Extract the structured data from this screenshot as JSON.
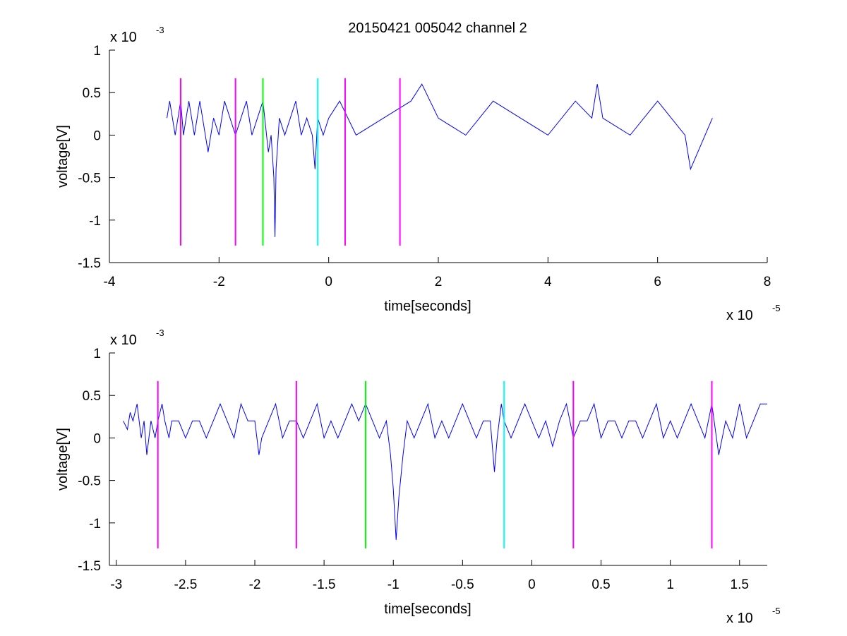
{
  "title": "20150421 005042 channel 2",
  "chart_data": [
    {
      "type": "line",
      "xlabel": "time[seconds]",
      "ylabel": "voltage[V]",
      "x_multiplier": {
        "base": "x 10",
        "exp": "-5"
      },
      "y_multiplier": {
        "base": "x 10",
        "exp": "-3"
      },
      "xlim": [
        -4,
        8
      ],
      "ylim": [
        -1.5,
        1
      ],
      "xticks": [
        "-4",
        "-2",
        "0",
        "2",
        "4",
        "6",
        "8"
      ],
      "xtick_values": [
        -4,
        -2,
        0,
        2,
        4,
        6,
        8
      ],
      "yticks": [
        "-1.5",
        "-1",
        "-0.5",
        "0",
        "0.5",
        "1"
      ],
      "ytick_values": [
        -1.5,
        -1,
        -0.5,
        0,
        0.5,
        1
      ],
      "series": [
        {
          "color": "#0000ff",
          "x": [
            -2.95,
            -2.9,
            -2.85,
            -2.8,
            -2.75,
            -2.7,
            -2.65,
            -2.6,
            -2.55,
            -2.5,
            -2.45,
            -2.4,
            -2.35,
            -2.3,
            -2.25,
            -2.2,
            -2.1,
            -2.0,
            -1.9,
            -1.8,
            -1.7,
            -1.6,
            -1.5,
            -1.4,
            -1.3,
            -1.2,
            -1.1,
            -1.05,
            -1.0,
            -0.98,
            -0.96,
            -0.9,
            -0.8,
            -0.7,
            -0.6,
            -0.5,
            -0.4,
            -0.3,
            -0.25,
            -0.2,
            -0.1,
            0.0,
            0.2,
            0.5,
            1.0,
            1.5,
            1.7,
            2.0,
            2.5,
            3.0,
            3.5,
            4.0,
            4.5,
            4.8,
            4.9,
            5.0,
            5.5,
            6.0,
            6.5,
            6.6,
            7.0
          ],
          "y": [
            0.2,
            0.4,
            0.2,
            0.0,
            0.2,
            0.4,
            0.0,
            0.2,
            0.4,
            0.2,
            0.0,
            0.2,
            0.4,
            0.2,
            0.0,
            -0.2,
            0.2,
            0.0,
            0.4,
            0.2,
            0.0,
            0.2,
            0.4,
            0.0,
            0.2,
            0.4,
            -0.2,
            0.0,
            -0.5,
            -1.2,
            -0.4,
            0.2,
            0.0,
            0.2,
            0.4,
            0.0,
            0.2,
            0.0,
            -0.4,
            0.2,
            0.0,
            0.2,
            0.4,
            0.0,
            0.2,
            0.4,
            0.6,
            0.2,
            0.0,
            0.4,
            0.2,
            0.0,
            0.4,
            0.2,
            0.6,
            0.2,
            0.0,
            0.4,
            0.0,
            -0.4,
            0.2
          ]
        }
      ],
      "vlines": [
        {
          "x": -2.7,
          "color": "#ff00ff",
          "y_from": -1.3,
          "y_to": 0.67
        },
        {
          "x": -1.7,
          "color": "#ff00ff",
          "y_from": -1.3,
          "y_to": 0.67
        },
        {
          "x": -1.2,
          "color": "#00ff00",
          "y_from": -1.3,
          "y_to": 0.67
        },
        {
          "x": -0.2,
          "color": "#00ffff",
          "y_from": -1.3,
          "y_to": 0.67
        },
        {
          "x": 0.3,
          "color": "#ff00ff",
          "y_from": -1.3,
          "y_to": 0.67
        },
        {
          "x": 1.3,
          "color": "#ff00ff",
          "y_from": -1.3,
          "y_to": 0.67
        }
      ]
    },
    {
      "type": "line",
      "xlabel": "time[seconds]",
      "ylabel": "voltage[V]",
      "x_multiplier": {
        "base": "x 10",
        "exp": "-5"
      },
      "y_multiplier": {
        "base": "x 10",
        "exp": "-3"
      },
      "xlim": [
        -3.05,
        1.7
      ],
      "ylim": [
        -1.5,
        1
      ],
      "xticks": [
        "-3",
        "-2.5",
        "-2",
        "-1.5",
        "-1",
        "-0.5",
        "0",
        "0.5",
        "1",
        "1.5"
      ],
      "xtick_values": [
        -3,
        -2.5,
        -2,
        -1.5,
        -1,
        -0.5,
        0,
        0.5,
        1,
        1.5
      ],
      "yticks": [
        "-1.5",
        "-1",
        "-0.5",
        "0",
        "0.5",
        "1"
      ],
      "ytick_values": [
        -1.5,
        -1,
        -0.5,
        0,
        0.5,
        1
      ],
      "series": [
        {
          "color": "#0000ff",
          "x": [
            -2.95,
            -2.92,
            -2.9,
            -2.88,
            -2.85,
            -2.82,
            -2.8,
            -2.78,
            -2.75,
            -2.72,
            -2.7,
            -2.67,
            -2.65,
            -2.62,
            -2.6,
            -2.55,
            -2.5,
            -2.45,
            -2.4,
            -2.35,
            -2.3,
            -2.25,
            -2.2,
            -2.15,
            -2.1,
            -2.05,
            -2.0,
            -1.97,
            -1.95,
            -1.9,
            -1.85,
            -1.8,
            -1.75,
            -1.7,
            -1.65,
            -1.6,
            -1.55,
            -1.5,
            -1.45,
            -1.4,
            -1.35,
            -1.3,
            -1.25,
            -1.2,
            -1.15,
            -1.1,
            -1.05,
            -1.02,
            -1.0,
            -0.98,
            -0.96,
            -0.93,
            -0.9,
            -0.85,
            -0.8,
            -0.75,
            -0.7,
            -0.65,
            -0.6,
            -0.55,
            -0.5,
            -0.45,
            -0.4,
            -0.35,
            -0.3,
            -0.27,
            -0.25,
            -0.22,
            -0.2,
            -0.15,
            -0.1,
            -0.05,
            0.0,
            0.05,
            0.1,
            0.15,
            0.2,
            0.25,
            0.3,
            0.35,
            0.4,
            0.45,
            0.5,
            0.55,
            0.6,
            0.65,
            0.7,
            0.75,
            0.8,
            0.85,
            0.9,
            0.95,
            1.0,
            1.05,
            1.1,
            1.15,
            1.2,
            1.25,
            1.3,
            1.35,
            1.4,
            1.45,
            1.5,
            1.55,
            1.6,
            1.65,
            1.7
          ],
          "y": [
            0.2,
            0.1,
            0.3,
            0.2,
            0.4,
            0.0,
            0.2,
            -0.2,
            0.2,
            0.0,
            0.2,
            0.4,
            0.2,
            0.0,
            0.2,
            0.2,
            0.0,
            0.2,
            0.2,
            0.0,
            0.2,
            0.4,
            0.2,
            0.0,
            0.4,
            0.2,
            0.2,
            -0.2,
            0.0,
            0.2,
            0.4,
            0.0,
            0.2,
            0.2,
            0.0,
            0.2,
            0.4,
            0.0,
            0.2,
            0.0,
            0.2,
            0.4,
            0.2,
            0.4,
            0.2,
            0.0,
            0.2,
            -0.2,
            -0.6,
            -1.2,
            -0.7,
            -0.2,
            0.2,
            0.0,
            0.2,
            0.4,
            0.0,
            0.2,
            0.0,
            0.2,
            0.4,
            0.2,
            0.0,
            0.2,
            0.2,
            -0.4,
            0.0,
            0.4,
            0.2,
            0.0,
            0.2,
            0.4,
            0.2,
            0.0,
            0.2,
            -0.1,
            0.2,
            0.4,
            0.0,
            0.2,
            0.2,
            0.4,
            0.0,
            0.2,
            0.2,
            0.0,
            0.2,
            0.2,
            0.0,
            0.2,
            0.4,
            0.0,
            0.2,
            0.0,
            0.2,
            0.4,
            0.2,
            0.0,
            0.4,
            -0.2,
            0.2,
            0.0,
            0.4,
            0.0,
            0.2,
            0.4,
            0.4
          ]
        }
      ],
      "vlines": [
        {
          "x": -2.7,
          "color": "#ff00ff",
          "y_from": -1.3,
          "y_to": 0.67
        },
        {
          "x": -1.7,
          "color": "#ff00ff",
          "y_from": -1.3,
          "y_to": 0.67
        },
        {
          "x": -1.2,
          "color": "#00ff00",
          "y_from": -1.3,
          "y_to": 0.67
        },
        {
          "x": -0.2,
          "color": "#00ffff",
          "y_from": -1.3,
          "y_to": 0.67
        },
        {
          "x": 0.3,
          "color": "#ff00ff",
          "y_from": -1.3,
          "y_to": 0.67
        },
        {
          "x": 1.3,
          "color": "#ff00ff",
          "y_from": -1.3,
          "y_to": 0.67
        }
      ]
    }
  ]
}
